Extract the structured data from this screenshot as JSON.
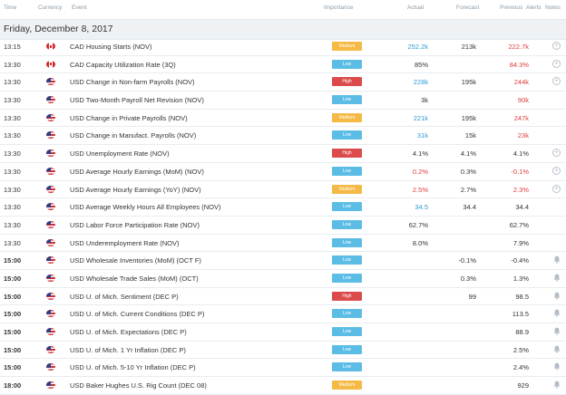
{
  "header": {
    "time": "Time",
    "currency": "Currency",
    "event": "Event",
    "importance": "Importance",
    "actual": "Actual",
    "forecast": "Forecast",
    "previous": "Previous",
    "alerts": "Alerts",
    "notes": "Notes"
  },
  "date_label": "Friday, December 8, 2017",
  "colors": {
    "medium": "#f5b945",
    "low": "#5bbde5",
    "high": "#dc4b4b",
    "positive": "#2f9ad6",
    "negative": "#e03c3c"
  },
  "rows": [
    {
      "time": "13:15",
      "bold": false,
      "flag": "flag-ca",
      "event": "CAD Housing Starts (NOV)",
      "importance": "Medium",
      "actual": "252.2k",
      "actual_color": "blue",
      "forecast": "213k",
      "previous": "222.7k",
      "previous_color": "red",
      "icon": "plus-circle-icon"
    },
    {
      "time": "13:30",
      "bold": false,
      "flag": "flag-ca",
      "event": "CAD Capacity Utilization Rate (3Q)",
      "importance": "Low",
      "actual": "85%",
      "actual_color": "",
      "forecast": "",
      "previous": "84.3%",
      "previous_color": "red",
      "icon": "plus-circle-icon"
    },
    {
      "time": "13:30",
      "bold": false,
      "flag": "flag-us",
      "event": "USD Change in Non-farm Payrolls (NOV)",
      "importance": "High",
      "actual": "228k",
      "actual_color": "blue",
      "forecast": "195k",
      "previous": "244k",
      "previous_color": "red",
      "icon": "plus-circle-icon"
    },
    {
      "time": "13:30",
      "bold": false,
      "flag": "flag-us",
      "event": "USD Two-Month Payroll Net Revision (NOV)",
      "importance": "Low",
      "actual": "3k",
      "actual_color": "",
      "forecast": "",
      "previous": "90k",
      "previous_color": "red",
      "icon": ""
    },
    {
      "time": "13:30",
      "bold": false,
      "flag": "flag-us",
      "event": "USD Change in Private Payrolls (NOV)",
      "importance": "Medium",
      "actual": "221k",
      "actual_color": "blue",
      "forecast": "195k",
      "previous": "247k",
      "previous_color": "red",
      "icon": ""
    },
    {
      "time": "13:30",
      "bold": false,
      "flag": "flag-us",
      "event": "USD Change in Manufact. Payrolls (NOV)",
      "importance": "Low",
      "actual": "31k",
      "actual_color": "blue",
      "forecast": "15k",
      "previous": "23k",
      "previous_color": "red",
      "icon": ""
    },
    {
      "time": "13:30",
      "bold": false,
      "flag": "flag-us",
      "event": "USD Unemployment Rate (NOV)",
      "importance": "High",
      "actual": "4.1%",
      "actual_color": "",
      "forecast": "4.1%",
      "previous": "4.1%",
      "previous_color": "",
      "icon": "plus-circle-icon"
    },
    {
      "time": "13:30",
      "bold": false,
      "flag": "flag-us",
      "event": "USD Average Hourly Earnings (MoM) (NOV)",
      "importance": "Low",
      "actual": "0.2%",
      "actual_color": "red",
      "forecast": "0.3%",
      "previous": "-0.1%",
      "previous_color": "red",
      "icon": "plus-circle-icon"
    },
    {
      "time": "13:30",
      "bold": false,
      "flag": "flag-us",
      "event": "USD Average Hourly Earnings (YoY) (NOV)",
      "importance": "Medium",
      "actual": "2.5%",
      "actual_color": "red",
      "forecast": "2.7%",
      "previous": "2.3%",
      "previous_color": "red",
      "icon": "plus-circle-icon"
    },
    {
      "time": "13:30",
      "bold": false,
      "flag": "flag-us",
      "event": "USD Average Weekly Hours All Employees (NOV)",
      "importance": "Low",
      "actual": "34.5",
      "actual_color": "blue",
      "forecast": "34.4",
      "previous": "34.4",
      "previous_color": "",
      "icon": ""
    },
    {
      "time": "13:30",
      "bold": false,
      "flag": "flag-us",
      "event": "USD Labor Force Participation Rate (NOV)",
      "importance": "Low",
      "actual": "62.7%",
      "actual_color": "",
      "forecast": "",
      "previous": "62.7%",
      "previous_color": "",
      "icon": ""
    },
    {
      "time": "13:30",
      "bold": false,
      "flag": "flag-us",
      "event": "USD Underemployment Rate (NOV)",
      "importance": "Low",
      "actual": "8.0%",
      "actual_color": "",
      "forecast": "",
      "previous": "7.9%",
      "previous_color": "",
      "icon": ""
    },
    {
      "time": "15:00",
      "bold": true,
      "flag": "flag-us",
      "event": "USD Wholesale Inventories (MoM) (OCT F)",
      "importance": "Low",
      "actual": "",
      "actual_color": "",
      "forecast": "-0.1%",
      "previous": "-0.4%",
      "previous_color": "",
      "icon": "bell-icon"
    },
    {
      "time": "15:00",
      "bold": true,
      "flag": "flag-us",
      "event": "USD Wholesale Trade Sales (MoM) (OCT)",
      "importance": "Low",
      "actual": "",
      "actual_color": "",
      "forecast": "0.3%",
      "previous": "1.3%",
      "previous_color": "",
      "icon": "bell-icon"
    },
    {
      "time": "15:00",
      "bold": true,
      "flag": "flag-us",
      "event": "USD U. of Mich. Sentiment (DEC P)",
      "importance": "High",
      "actual": "",
      "actual_color": "",
      "forecast": "99",
      "previous": "98.5",
      "previous_color": "",
      "icon": "bell-icon"
    },
    {
      "time": "15:00",
      "bold": true,
      "flag": "flag-us",
      "event": "USD U. of Mich. Current Conditions (DEC P)",
      "importance": "Low",
      "actual": "",
      "actual_color": "",
      "forecast": "",
      "previous": "113.5",
      "previous_color": "",
      "icon": "bell-icon"
    },
    {
      "time": "15:00",
      "bold": true,
      "flag": "flag-us",
      "event": "USD U. of Mich. Expectations (DEC P)",
      "importance": "Low",
      "actual": "",
      "actual_color": "",
      "forecast": "",
      "previous": "88.9",
      "previous_color": "",
      "icon": "bell-icon"
    },
    {
      "time": "15:00",
      "bold": true,
      "flag": "flag-us",
      "event": "USD U. of Mich. 1 Yr Inflation (DEC P)",
      "importance": "Low",
      "actual": "",
      "actual_color": "",
      "forecast": "",
      "previous": "2.5%",
      "previous_color": "",
      "icon": "bell-icon"
    },
    {
      "time": "15:00",
      "bold": true,
      "flag": "flag-us",
      "event": "USD U. of Mich. 5-10 Yr Inflation (DEC P)",
      "importance": "Low",
      "actual": "",
      "actual_color": "",
      "forecast": "",
      "previous": "2.4%",
      "previous_color": "",
      "icon": "bell-icon"
    },
    {
      "time": "18:00",
      "bold": true,
      "flag": "flag-us",
      "event": "USD Baker Hughes U.S. Rig Count (DEC 08)",
      "importance": "Medium",
      "actual": "",
      "actual_color": "",
      "forecast": "",
      "previous": "929",
      "previous_color": "",
      "icon": "bell-icon"
    }
  ]
}
